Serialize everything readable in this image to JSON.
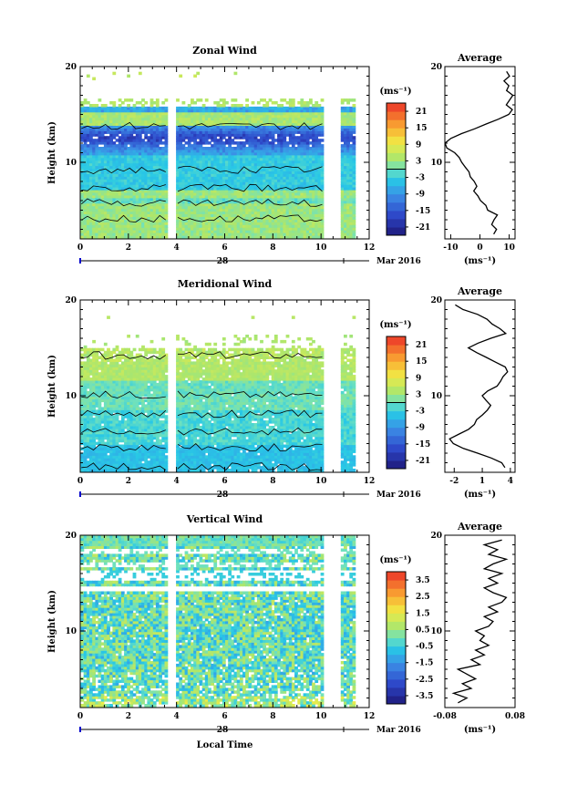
{
  "chart_data": [
    {
      "type": "heatmap",
      "title": "Zonal Wind",
      "ylabel": "Height (km)",
      "xlim": [
        0,
        12
      ],
      "ylim": [
        2,
        20
      ],
      "x_ticks": [
        "0",
        "2",
        "4",
        "6",
        "8",
        "10",
        "12"
      ],
      "y_ticks": [
        "10",
        "20"
      ],
      "date_axis": {
        "day": "28",
        "month": "Mar 2016"
      },
      "colorbar": {
        "unit": "(ms⁻¹)",
        "ticks": [
          "-21",
          "-15",
          "-9",
          "-3",
          "3",
          "9",
          "15",
          "21"
        ],
        "range": [
          -24,
          24
        ]
      },
      "gaps": [
        [
          3.7,
          3.9
        ],
        [
          10.1,
          10.7
        ]
      ],
      "profile": {
        "title": "Average",
        "xlim": [
          -12,
          12
        ],
        "x_ticks": [
          "-10",
          "0",
          "10"
        ],
        "xunit": "(ms⁻¹)",
        "y_ticks": [
          "10",
          "20"
        ],
        "heights": [
          2.5,
          3,
          3.5,
          4,
          4.5,
          5,
          5.5,
          6,
          6.5,
          7,
          7.5,
          8,
          8.5,
          9,
          9.5,
          10,
          10.5,
          11,
          11.5,
          12,
          12.5,
          13,
          13.5,
          14,
          14.5,
          15,
          15.5,
          16,
          16.5,
          17,
          17.5,
          18,
          18.5,
          19,
          19.5
        ],
        "values": [
          5,
          6,
          4,
          5,
          6,
          3,
          2,
          0,
          -1,
          -2,
          -1,
          -2,
          -3,
          -4,
          -5,
          -6,
          -7,
          -9,
          -11,
          -12,
          -10,
          -6,
          -2,
          2,
          6,
          10,
          11,
          9,
          10,
          11,
          9,
          10,
          8,
          10,
          9
        ]
      }
    },
    {
      "type": "heatmap",
      "title": "Meridional Wind",
      "ylabel": "Height (km)",
      "xlim": [
        0,
        12
      ],
      "ylim": [
        2,
        20
      ],
      "x_ticks": [
        "0",
        "2",
        "4",
        "6",
        "8",
        "10",
        "12"
      ],
      "y_ticks": [
        "10",
        "20"
      ],
      "date_axis": {
        "day": "28",
        "month": "Mar 2016"
      },
      "colorbar": {
        "unit": "(ms⁻¹)",
        "ticks": [
          "-21",
          "-15",
          "-9",
          "-3",
          "3",
          "9",
          "15",
          "21"
        ],
        "range": [
          -24,
          24
        ]
      },
      "gaps": [
        [
          3.7,
          3.9
        ],
        [
          10.1,
          10.7
        ]
      ],
      "profile": {
        "title": "Average",
        "xlim": [
          -3,
          4.5
        ],
        "x_ticks": [
          "-2",
          "1",
          "4"
        ],
        "xunit": "(ms⁻¹)",
        "y_ticks": [
          "10",
          "20"
        ],
        "heights": [
          2.5,
          3,
          3.5,
          4,
          4.5,
          5,
          5.5,
          6,
          6.5,
          7,
          7.5,
          8,
          8.5,
          9,
          9.5,
          10,
          10.5,
          11,
          11.5,
          12,
          12.5,
          13,
          13.5,
          14,
          14.5,
          15,
          15.5,
          16,
          16.5,
          17,
          17.5,
          18,
          18.5,
          19,
          19.5
        ],
        "values": [
          3.5,
          3.0,
          2.0,
          0.5,
          -1.0,
          -2.0,
          -2.4,
          -1.5,
          -0.5,
          0.2,
          0.5,
          1.0,
          1.5,
          1.8,
          1.5,
          1.0,
          1.5,
          2.5,
          3.0,
          3.3,
          3.8,
          3.5,
          2.5,
          1.5,
          0.5,
          -0.5,
          0.5,
          2.0,
          3.5,
          3.0,
          2.0,
          1.5,
          0.5,
          -1.0,
          -2.0
        ]
      }
    },
    {
      "type": "heatmap",
      "title": "Vertical Wind",
      "ylabel": "Height (km)",
      "xlabel": "Local Time",
      "xlim": [
        0,
        12
      ],
      "ylim": [
        2,
        20
      ],
      "x_ticks": [
        "0",
        "2",
        "4",
        "6",
        "8",
        "10",
        "12"
      ],
      "y_ticks": [
        "10",
        "20"
      ],
      "date_axis": {
        "day": "28",
        "month": "Mar 2016"
      },
      "colorbar": {
        "unit": "(ms⁻¹)",
        "ticks": [
          "-3.5",
          "-2.5",
          "-1.5",
          "-0.5",
          "0.5",
          "1.5",
          "2.5",
          "3.5"
        ],
        "range": [
          -4,
          4
        ]
      },
      "gaps": [
        [
          3.7,
          3.9
        ],
        [
          10.1,
          10.7
        ]
      ],
      "profile": {
        "title": "Average",
        "xlim": [
          -0.08,
          0.08
        ],
        "x_ticks": [
          "-0.08",
          "0.08"
        ],
        "xunit": "(ms⁻¹)",
        "y_ticks": [
          "10",
          "20"
        ],
        "heights": [
          2.5,
          3,
          3.5,
          4,
          4.5,
          5,
          5.5,
          6,
          6.5,
          7,
          7.5,
          8,
          8.5,
          9,
          9.5,
          10,
          10.5,
          11,
          11.5,
          12,
          12.5,
          13,
          13.5,
          14,
          14.5,
          15,
          15.5,
          16,
          16.5,
          17,
          17.5,
          18,
          18.5,
          19,
          19.5
        ],
        "values": [
          -0.05,
          -0.03,
          -0.06,
          -0.02,
          -0.04,
          -0.01,
          -0.03,
          -0.05,
          0.0,
          -0.02,
          0.01,
          -0.01,
          0.02,
          0.0,
          0.01,
          -0.01,
          0.02,
          0.03,
          0.01,
          0.04,
          0.02,
          0.05,
          0.06,
          0.03,
          0.01,
          0.04,
          0.02,
          0.05,
          0.01,
          0.03,
          0.06,
          0.02,
          0.04,
          0.01,
          0.05
        ]
      }
    }
  ]
}
